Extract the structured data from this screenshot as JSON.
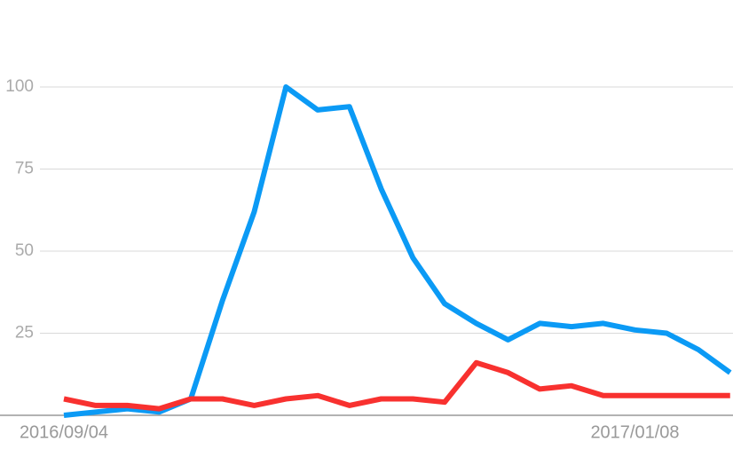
{
  "chart_data": {
    "type": "line",
    "categories": [
      "2016/09/04",
      null,
      null,
      null,
      null,
      null,
      null,
      null,
      null,
      null,
      null,
      null,
      null,
      null,
      null,
      null,
      null,
      null,
      "2017/01/08",
      null,
      null,
      null
    ],
    "series": [
      {
        "color": "#0b9af5",
        "values": [
          0,
          1,
          2,
          1,
          5,
          35,
          62,
          100,
          93,
          94,
          69,
          48,
          34,
          28,
          23,
          28,
          27,
          28,
          26,
          25,
          20,
          13
        ]
      },
      {
        "color": "#f8312f",
        "values": [
          5,
          3,
          3,
          2,
          5,
          5,
          3,
          5,
          6,
          3,
          5,
          5,
          4,
          16,
          13,
          8,
          9,
          6,
          6,
          6,
          6,
          6
        ]
      }
    ],
    "ylim": [
      0,
      100
    ],
    "yticks": [
      25,
      50,
      75,
      100
    ],
    "grid": true
  }
}
